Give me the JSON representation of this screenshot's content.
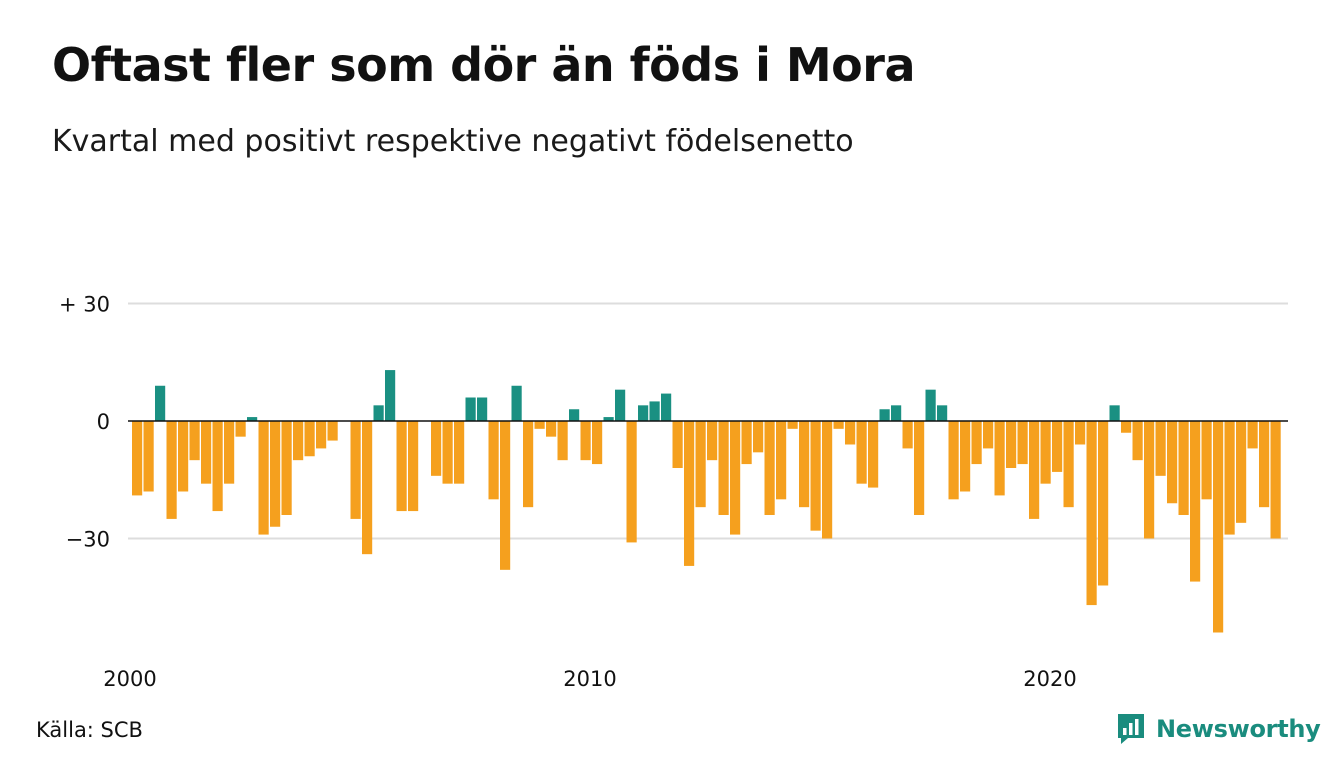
{
  "title": "Oftast fler som dör än föds i Mora",
  "subtitle": "Kvartal med positivt respektive negativt födelsenetto",
  "source": "Källa: SCB",
  "brand": "Newsworthy",
  "colors": {
    "positive": "#1a9082",
    "negative": "#f5a01e",
    "grid": "#dddddd",
    "zero_line": "#111111",
    "brand": "#1a8c7e"
  },
  "chart_data": {
    "type": "bar",
    "start_period": "2000 Q1",
    "periods_per_year": 4,
    "ylim": [
      -55,
      30
    ],
    "y_ticks": [
      {
        "value": 30,
        "label": "+ 30"
      },
      {
        "value": 0,
        "label": "0"
      },
      {
        "value": -30,
        "label": "−30"
      }
    ],
    "x_ticks": [
      "2000",
      "2010",
      "2020"
    ],
    "grid": true,
    "values": [
      -19,
      -18,
      9,
      -25,
      -18,
      -10,
      -16,
      -23,
      -16,
      -4,
      1,
      -29,
      -27,
      -24,
      -10,
      -9,
      -7,
      -5,
      0,
      -25,
      -34,
      4,
      13,
      -23,
      -23,
      0,
      -14,
      -16,
      -16,
      6,
      6,
      -20,
      -38,
      9,
      -22,
      -2,
      -4,
      -10,
      3,
      -10,
      -11,
      1,
      8,
      -31,
      4,
      5,
      7,
      -12,
      -37,
      -22,
      -10,
      -24,
      -29,
      -11,
      -8,
      -24,
      -20,
      -2,
      -22,
      -28,
      -30,
      -2,
      -6,
      -16,
      -17,
      3,
      4,
      -7,
      -24,
      8,
      4,
      -20,
      -18,
      -11,
      -7,
      -19,
      -12,
      -11,
      -25,
      -16,
      -13,
      -22,
      -6,
      -47,
      -42,
      4,
      -3,
      -10,
      -30,
      -14,
      -21,
      -24,
      -41,
      -20,
      -54,
      -29,
      -26,
      -7,
      -22,
      -30
    ]
  }
}
